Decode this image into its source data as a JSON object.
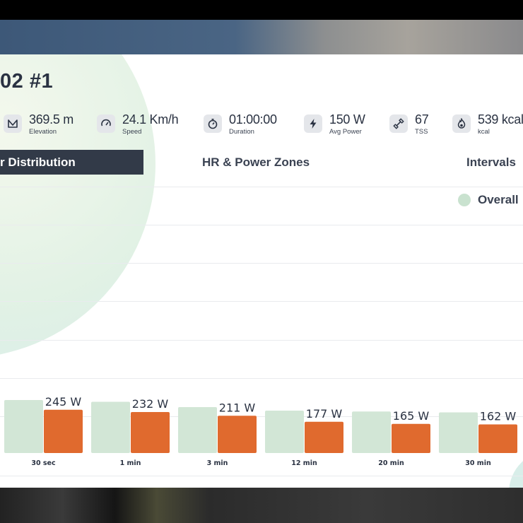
{
  "workout": {
    "title": "02 #1"
  },
  "stats": [
    {
      "value": "369.5 m",
      "label": "Elevation",
      "icon": "mountain-icon"
    },
    {
      "value": "24.1 Km/h",
      "label": "Speed",
      "icon": "speedometer-icon"
    },
    {
      "value": "01:00:00",
      "label": "Duration",
      "icon": "stopwatch-icon"
    },
    {
      "value": "150 W",
      "label": "Avg Power",
      "icon": "lightning-icon"
    },
    {
      "value": "67",
      "label": "TSS",
      "icon": "dumbbell-icon"
    },
    {
      "value": "539 kcal",
      "label": "kcal",
      "icon": "flame-icon"
    }
  ],
  "tabs": [
    {
      "label": "r Distribution",
      "active": true
    },
    {
      "label": "HR & Power Zones",
      "active": false
    },
    {
      "label": "Intervals",
      "active": false
    }
  ],
  "legend": {
    "overall": "Overall"
  },
  "colors": {
    "overall_bar": "#d2e6d6",
    "ride_bar": "#e06a2e",
    "tab_active": "#323a48"
  },
  "chart_data": {
    "type": "bar",
    "categories": [
      "30 sec",
      "1 min",
      "3 min",
      "12 min",
      "20 min",
      "30 min"
    ],
    "series": [
      {
        "name": "Overall",
        "values": [
          300,
          290,
          260,
          240,
          235,
          230
        ]
      },
      {
        "values": [
          245,
          232,
          211,
          177,
          165,
          162
        ]
      }
    ],
    "data_labels": [
      "245 W",
      "232 W",
      "211 W",
      "177 W",
      "165 W",
      "162 W"
    ]
  }
}
